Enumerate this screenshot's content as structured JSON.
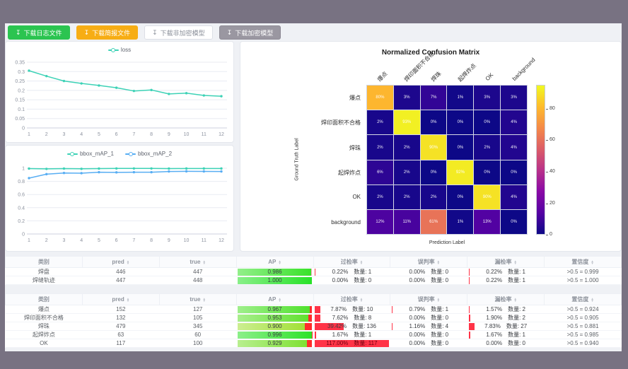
{
  "toolbar": {
    "buttons": [
      {
        "label": "下载日志文件",
        "bg": "#2bc450",
        "color": "#ffffff",
        "border": "#2bc450"
      },
      {
        "label": "下载简报文件",
        "bg": "#f7ad14",
        "color": "#ffffff",
        "border": "#f7ad14"
      },
      {
        "label": "下载非加密模型",
        "bg": "#ffffff",
        "color": "#8a8f99",
        "border": "#dcdfe6"
      },
      {
        "label": "下载加密模型",
        "bg": "#9a97a1",
        "color": "#ffffff",
        "border": "#8d8a94"
      }
    ]
  },
  "chart_data": [
    {
      "type": "line",
      "title": "",
      "x": [
        1,
        2,
        3,
        4,
        5,
        6,
        7,
        8,
        9,
        10,
        11,
        12
      ],
      "series": [
        {
          "name": "loss",
          "color": "#3dd2b6",
          "values": [
            0.305,
            0.276,
            0.25,
            0.237,
            0.226,
            0.214,
            0.197,
            0.202,
            0.181,
            0.185,
            0.173,
            0.169
          ]
        }
      ],
      "ylim": [
        0,
        0.35
      ],
      "yticks": [
        0,
        0.05,
        0.1,
        0.15,
        0.2,
        0.25,
        0.3,
        0.35
      ],
      "legend_position": "top",
      "grid": true
    },
    {
      "type": "line",
      "title": "",
      "x": [
        1,
        2,
        3,
        4,
        5,
        6,
        7,
        8,
        9,
        10,
        11,
        12
      ],
      "series": [
        {
          "name": "bbox_mAP_1",
          "color": "#3dd2b6",
          "values": [
            0.995,
            0.99,
            0.995,
            0.991,
            0.995,
            0.997,
            0.997,
            0.997,
            0.995,
            0.996,
            0.996,
            0.996
          ]
        },
        {
          "name": "bbox_mAP_2",
          "color": "#58aef3",
          "values": [
            0.85,
            0.91,
            0.928,
            0.925,
            0.94,
            0.937,
            0.94,
            0.94,
            0.951,
            0.953,
            0.952,
            0.951
          ]
        }
      ],
      "ylim": [
        0,
        1
      ],
      "yticks": [
        0,
        0.2,
        0.4,
        0.6,
        0.8,
        1
      ],
      "legend_position": "top",
      "grid": true
    },
    {
      "type": "heatmap",
      "title": "Normalized Confusion Matrix",
      "xlabel": "Prediction Label",
      "ylabel": "Ground Truth Label",
      "labels": [
        "爆点",
        "焊印面积不合格",
        "焊珠",
        "起焊炸点",
        "OK",
        "background"
      ],
      "values": [
        [
          80,
          3,
          7,
          1,
          3,
          3
        ],
        [
          2,
          93,
          0,
          0,
          0,
          4
        ],
        [
          2,
          2,
          90,
          0,
          2,
          4
        ],
        [
          6,
          2,
          0,
          92,
          0,
          0
        ],
        [
          2,
          2,
          2,
          0,
          90,
          4
        ],
        [
          12,
          11,
          61,
          1,
          13,
          0
        ]
      ],
      "unit": "%",
      "vmax": 95,
      "colormap": "plasma",
      "colorbar_ticks": [
        0,
        20,
        40,
        60,
        80
      ],
      "legend_position": "right-colorbar"
    }
  ],
  "tables": {
    "columns": [
      "类别",
      "pred",
      "true",
      "AP",
      "过检率",
      "误判率",
      "漏检率",
      "置信度"
    ],
    "sortable": [
      false,
      true,
      true,
      true,
      true,
      true,
      true,
      true
    ],
    "count_label": "数量",
    "groups": [
      {
        "ap_remainder_color": "#ffaec6",
        "rows": [
          {
            "category": "焊盘",
            "pred": 446,
            "true": 447,
            "ap": "0.986",
            "over_rate": {
              "pct": "0.22%",
              "count": 1
            },
            "misjudge_rate": {
              "pct": "0.00%",
              "count": 0
            },
            "miss_rate": {
              "pct": "0.22%",
              "count": 1
            },
            "confidence": ">0.5 = 0.999"
          },
          {
            "category": "焊缝轨迹",
            "pred": 447,
            "true": 448,
            "ap": "1.000",
            "over_rate": {
              "pct": "0.00%",
              "count": 0
            },
            "misjudge_rate": {
              "pct": "0.00%",
              "count": 0
            },
            "miss_rate": {
              "pct": "0.22%",
              "count": 1
            },
            "confidence": ">0.5 = 1.000"
          }
        ]
      },
      {
        "ap_remainder_color": "#ff2b2b",
        "rows": [
          {
            "category": "爆点",
            "pred": 152,
            "true": 127,
            "ap": "0.967",
            "over_rate": {
              "pct": "7.87%",
              "count": 10
            },
            "misjudge_rate": {
              "pct": "0.79%",
              "count": 1
            },
            "miss_rate": {
              "pct": "1.57%",
              "count": 2
            },
            "confidence": ">0.5 = 0.924"
          },
          {
            "category": "焊印面积不合格",
            "pred": 132,
            "true": 105,
            "ap": "0.953",
            "over_rate": {
              "pct": "7.62%",
              "count": 8
            },
            "misjudge_rate": {
              "pct": "0.00%",
              "count": 0
            },
            "miss_rate": {
              "pct": "1.90%",
              "count": 2
            },
            "confidence": ">0.5 = 0.905"
          },
          {
            "category": "焊珠",
            "pred": 479,
            "true": 345,
            "ap": "0.900",
            "over_rate": {
              "pct": "39.42%",
              "count": 136
            },
            "misjudge_rate": {
              "pct": "1.16%",
              "count": 4
            },
            "miss_rate": {
              "pct": "7.83%",
              "count": 27
            },
            "confidence": ">0.5 = 0.881"
          },
          {
            "category": "起焊炸点",
            "pred": 63,
            "true": 60,
            "ap": "0.996",
            "over_rate": {
              "pct": "1.67%",
              "count": 1
            },
            "misjudge_rate": {
              "pct": "0.00%",
              "count": 0
            },
            "miss_rate": {
              "pct": "1.67%",
              "count": 1
            },
            "confidence": ">0.5 = 0.985"
          },
          {
            "category": "OK",
            "pred": 117,
            "true": 100,
            "ap": "0.929",
            "over_rate": {
              "pct": "117.00%",
              "count": 117
            },
            "misjudge_rate": {
              "pct": "0.00%",
              "count": 0
            },
            "miss_rate": {
              "pct": "0.00%",
              "count": 0
            },
            "confidence": ">0.5 = 0.940"
          }
        ]
      }
    ]
  },
  "colors": {
    "rate_bar": "#ff3347",
    "ap_green_hi": [
      40,
      226,
      40
    ],
    "ap_green_lo": [
      186,
      224,
      58
    ]
  }
}
